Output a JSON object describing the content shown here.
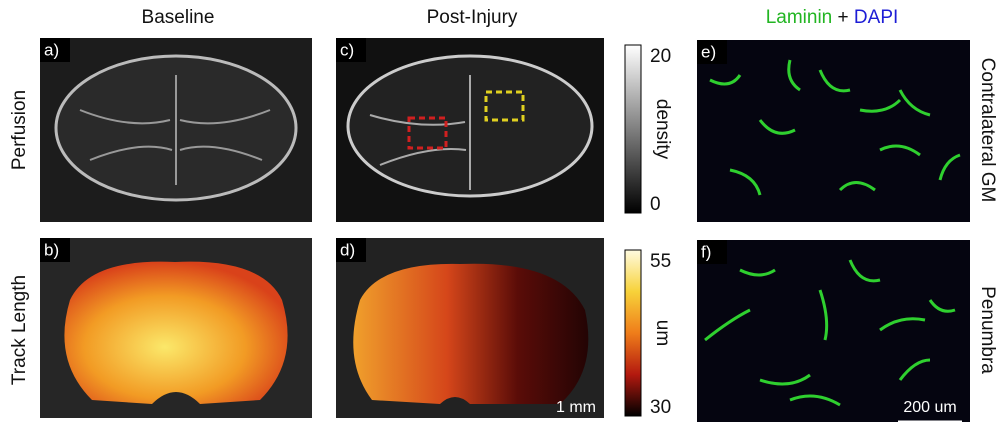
{
  "columns": [
    "Baseline",
    "Post-Injury"
  ],
  "stain": {
    "first": "Laminin",
    "joiner": "+",
    "second": "DAPI"
  },
  "rows": [
    "Perfusion",
    "Track Length"
  ],
  "regions": [
    "Contralateral GM",
    "Penumbra"
  ],
  "panels": [
    "a)",
    "b)",
    "c)",
    "d)",
    "e)",
    "f)"
  ],
  "colorbars": [
    {
      "label": "density",
      "ticks": [
        20,
        0
      ]
    },
    {
      "label": "um",
      "ticks": [
        55,
        30
      ]
    }
  ],
  "scale_bars": [
    "1 mm",
    "200 um"
  ]
}
